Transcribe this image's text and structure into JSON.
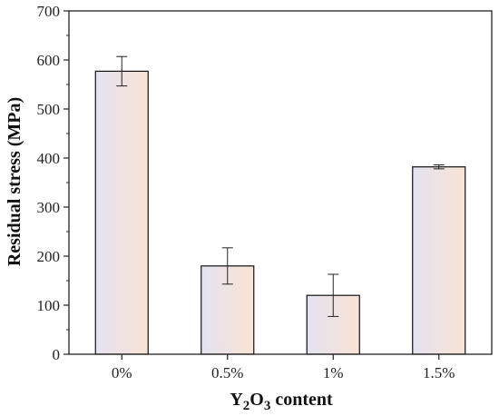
{
  "chart_data": {
    "type": "bar",
    "categories": [
      "0%",
      "0.5%",
      "1%",
      "1.5%"
    ],
    "values": [
      577,
      180,
      120,
      382
    ],
    "errors": [
      30,
      37,
      43,
      4
    ],
    "xlabel": {
      "main": "Y",
      "sub1": "2",
      "mid": "O",
      "sub2": "3",
      "rest": " content"
    },
    "ylabel": "Residual stress (MPa)",
    "ylim": [
      0,
      700
    ],
    "yticks": [
      "0",
      "100",
      "200",
      "300",
      "400",
      "500",
      "600",
      "700"
    ],
    "grid": false,
    "bar_gradient": [
      "#e4e2f2",
      "#f9e3d4"
    ]
  }
}
